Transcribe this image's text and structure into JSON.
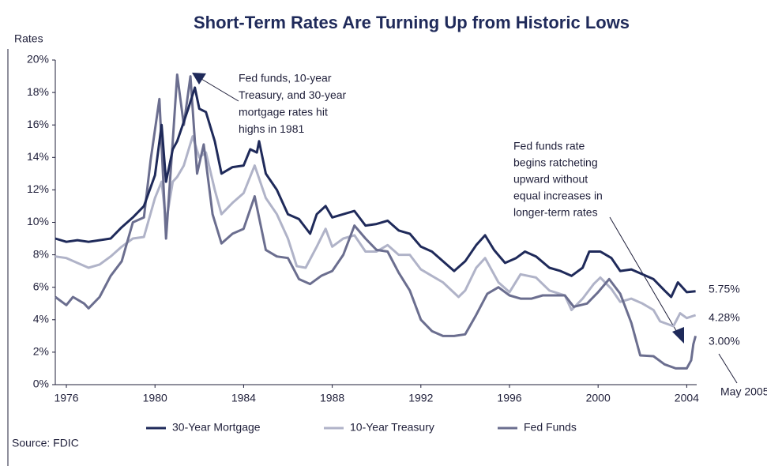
{
  "chart_data": {
    "type": "line",
    "title": "Short-Term Rates Are Turning Up from Historic Lows",
    "y_label": "Rates",
    "source": "Source: FDIC",
    "xlim": [
      1975.5,
      2004.45
    ],
    "xticks": [
      1976,
      1980,
      1984,
      1988,
      1992,
      1996,
      2000,
      2004
    ],
    "ylim": [
      0,
      20
    ],
    "yticks": [
      {
        "value": 0,
        "label": "0%"
      },
      {
        "value": 2,
        "label": "2%"
      },
      {
        "value": 4,
        "label": "4%"
      },
      {
        "value": 6,
        "label": "6%"
      },
      {
        "value": 8,
        "label": "8%"
      },
      {
        "value": 10,
        "label": "10%"
      },
      {
        "value": 12,
        "label": "12%"
      },
      {
        "value": 14,
        "label": "14%"
      },
      {
        "value": 16,
        "label": "16%"
      },
      {
        "value": 18,
        "label": "18%"
      },
      {
        "value": 20,
        "label": "20%"
      }
    ],
    "legend": "bottom",
    "series": [
      {
        "name": "30-Year Mortgage",
        "color": "#1f2a5a",
        "x": [
          1975.5,
          1976,
          1976.5,
          1977,
          1977.5,
          1978,
          1978.5,
          1979,
          1979.5,
          1980,
          1980.3,
          1980.5,
          1980.8,
          1981,
          1981.5,
          1981.8,
          1982,
          1982.3,
          1982.7,
          1983,
          1983.5,
          1984,
          1984.3,
          1984.6,
          1984.7,
          1985,
          1985.5,
          1986,
          1986.5,
          1987,
          1987.3,
          1987.7,
          1988,
          1988.5,
          1989,
          1989.5,
          1990,
          1990.5,
          1991,
          1991.5,
          1992,
          1992.5,
          1993,
          1993.5,
          1994,
          1994.5,
          1994.9,
          1995.3,
          1995.8,
          1996.3,
          1996.7,
          1997.2,
          1997.8,
          1998.3,
          1998.8,
          1999.3,
          1999.6,
          2000.1,
          2000.6,
          2001,
          2001.5,
          2002,
          2002.5,
          2003,
          2003.3,
          2003.6,
          2004,
          2004.4
        ],
        "values": [
          9.0,
          8.8,
          8.9,
          8.8,
          8.9,
          9.0,
          9.7,
          10.3,
          11.0,
          12.9,
          16.0,
          12.5,
          14.5,
          15.0,
          17.0,
          18.3,
          17.0,
          16.8,
          15.0,
          13.0,
          13.4,
          13.5,
          14.5,
          14.3,
          15.0,
          13.0,
          12.0,
          10.5,
          10.2,
          9.3,
          10.5,
          11.0,
          10.3,
          10.5,
          10.7,
          9.8,
          9.9,
          10.1,
          9.5,
          9.3,
          8.5,
          8.2,
          7.6,
          7.0,
          7.6,
          8.6,
          9.2,
          8.3,
          7.5,
          7.8,
          8.2,
          7.9,
          7.2,
          7.0,
          6.7,
          7.2,
          8.2,
          8.2,
          7.8,
          7.0,
          7.1,
          6.8,
          6.5,
          5.8,
          5.4,
          6.3,
          5.7,
          5.75
        ],
        "end_label": "5.75%"
      },
      {
        "name": "10-Year Treasury",
        "color": "#b0b3c8",
        "x": [
          1975.5,
          1976,
          1976.5,
          1977,
          1977.5,
          1978,
          1978.5,
          1979,
          1979.5,
          1980,
          1980.3,
          1980.5,
          1980.8,
          1981,
          1981.3,
          1981.7,
          1982,
          1982.3,
          1982.7,
          1983,
          1983.5,
          1984,
          1984.5,
          1985,
          1985.5,
          1986,
          1986.4,
          1986.8,
          1987.3,
          1987.7,
          1988,
          1988.5,
          1989,
          1989.5,
          1990,
          1990.5,
          1991,
          1991.5,
          1992,
          1992.5,
          1993,
          1993.7,
          1994,
          1994.5,
          1994.9,
          1995.5,
          1996,
          1996.5,
          1997.2,
          1997.8,
          1998.5,
          1998.8,
          1999.3,
          1999.8,
          2000.1,
          2000.6,
          2001,
          2001.5,
          2002,
          2002.5,
          2002.8,
          2003.4,
          2003.7,
          2004,
          2004.4
        ],
        "values": [
          7.9,
          7.8,
          7.5,
          7.2,
          7.4,
          7.9,
          8.5,
          9.0,
          9.1,
          11.5,
          12.5,
          10.0,
          12.5,
          12.8,
          13.5,
          15.3,
          14.0,
          14.3,
          12.0,
          10.5,
          11.2,
          11.8,
          13.5,
          11.5,
          10.5,
          9.0,
          7.3,
          7.2,
          8.5,
          9.6,
          8.5,
          9.0,
          9.2,
          8.2,
          8.2,
          8.6,
          8.0,
          8.0,
          7.1,
          6.7,
          6.3,
          5.4,
          5.8,
          7.2,
          7.8,
          6.3,
          5.7,
          6.8,
          6.6,
          5.8,
          5.5,
          4.6,
          5.3,
          6.2,
          6.6,
          5.9,
          5.1,
          5.3,
          5.0,
          4.6,
          3.9,
          3.6,
          4.4,
          4.1,
          4.28
        ],
        "end_label": "4.28%"
      },
      {
        "name": "Fed Funds",
        "color": "#6b6e8f",
        "x": [
          1975.5,
          1976,
          1976.3,
          1976.8,
          1977,
          1977.5,
          1978,
          1978.5,
          1979,
          1979.5,
          1979.8,
          1980.2,
          1980.5,
          1980.8,
          1981,
          1981.3,
          1981.6,
          1981.9,
          1982.2,
          1982.6,
          1983,
          1983.5,
          1984,
          1984.5,
          1985,
          1985.5,
          1986,
          1986.5,
          1987,
          1987.5,
          1988,
          1988.5,
          1989,
          1989.5,
          1990,
          1990.5,
          1991,
          1991.5,
          1992,
          1992.5,
          1993,
          1993.5,
          1994,
          1994.5,
          1995,
          1995.5,
          1996,
          1996.5,
          1997,
          1997.5,
          1998,
          1998.5,
          1998.9,
          1999.5,
          2000,
          2000.5,
          2001,
          2001.5,
          2001.9,
          2002.5,
          2003,
          2003.5,
          2004,
          2004.2,
          2004.3,
          2004.4
        ],
        "values": [
          5.4,
          4.9,
          5.4,
          5.0,
          4.7,
          5.4,
          6.7,
          7.6,
          10.0,
          10.3,
          13.8,
          17.6,
          9.0,
          15.0,
          19.1,
          16.0,
          19.0,
          13.0,
          14.8,
          10.5,
          8.7,
          9.3,
          9.6,
          11.6,
          8.3,
          7.9,
          7.8,
          6.5,
          6.2,
          6.7,
          7.0,
          8.0,
          9.8,
          9.0,
          8.3,
          8.2,
          6.9,
          5.8,
          4.0,
          3.3,
          3.0,
          3.0,
          3.1,
          4.3,
          5.6,
          6.0,
          5.5,
          5.3,
          5.3,
          5.5,
          5.5,
          5.5,
          4.8,
          5.0,
          5.7,
          6.5,
          5.6,
          3.8,
          1.8,
          1.75,
          1.25,
          1.0,
          1.0,
          1.5,
          2.5,
          3.0
        ],
        "end_label": "3.00%"
      }
    ],
    "annotations": [
      {
        "lines": [
          "Fed funds, 10-year",
          "Treasury, and 30-year",
          "mortgage rates hit",
          "highs in 1981"
        ]
      },
      {
        "lines": [
          "Fed funds rate",
          "begins ratcheting",
          "upward without",
          "equal increases in",
          "longer-term rates"
        ]
      },
      {
        "lines": [
          "May 2005"
        ]
      }
    ]
  }
}
